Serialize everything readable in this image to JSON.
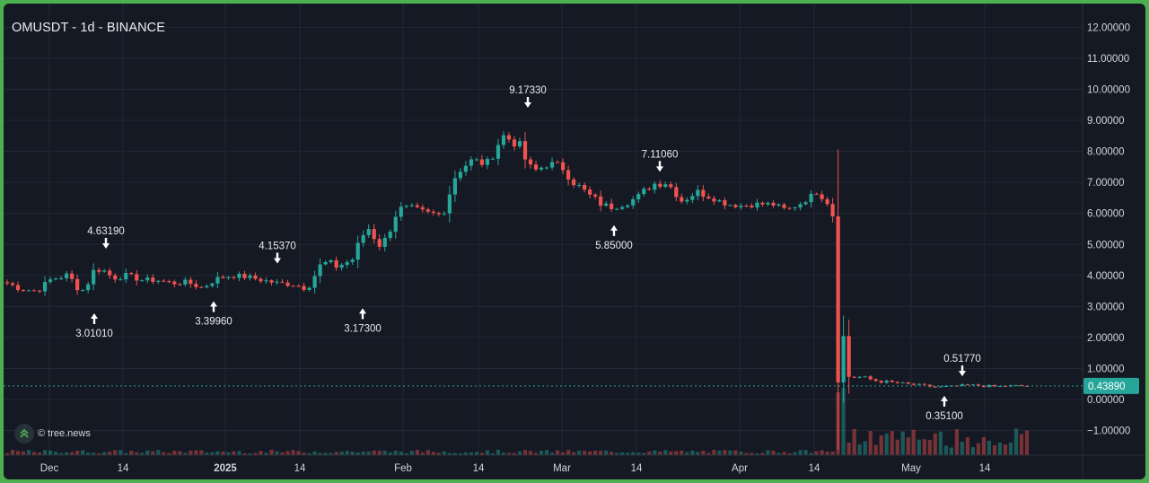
{
  "header": {
    "title": "OMUSDT - 1d - BINANCE"
  },
  "watermark": {
    "text": "© tree.news",
    "icon": "tree-news-logo-icon"
  },
  "colors": {
    "background": "#151923",
    "grid": "#232834",
    "up": "#26a69a",
    "down": "#ef5350",
    "text": "#d1d4dc",
    "price_line": "#26a69a"
  },
  "chart_data": {
    "type": "candlestick",
    "symbol": "OMUSDT",
    "interval": "1d",
    "exchange": "BINANCE",
    "y_axis": {
      "ylim": [
        -1.6,
        12.4
      ],
      "ticks": [
        "12.00000",
        "11.00000",
        "10.00000",
        "9.00000",
        "8.00000",
        "7.00000",
        "6.00000",
        "5.00000",
        "4.00000",
        "3.00000",
        "2.00000",
        "1.00000",
        "0.00000",
        "−1.00000"
      ]
    },
    "x_axis": {
      "ticks": [
        "Dec",
        "14",
        "2025",
        "14",
        "Feb",
        "14",
        "Mar",
        "14",
        "Apr",
        "14",
        "May",
        "14"
      ]
    },
    "last_price": {
      "value": 0.4389,
      "label": "0.43890"
    },
    "annotations": [
      {
        "label": "4.63190",
        "value": 4.6319,
        "type": "high"
      },
      {
        "label": "3.01010",
        "value": 3.0101,
        "type": "low"
      },
      {
        "label": "3.39960",
        "value": 3.3996,
        "type": "low"
      },
      {
        "label": "4.15370",
        "value": 4.1537,
        "type": "high"
      },
      {
        "label": "3.17300",
        "value": 3.173,
        "type": "low"
      },
      {
        "label": "9.17330",
        "value": 9.1733,
        "type": "high"
      },
      {
        "label": "5.85000",
        "value": 5.85,
        "type": "low"
      },
      {
        "label": "7.11060",
        "value": 7.1106,
        "type": "high"
      },
      {
        "label": "0.51770",
        "value": 0.5177,
        "type": "high"
      },
      {
        "label": "0.35100",
        "value": 0.351,
        "type": "low"
      }
    ],
    "keypoints": [
      [
        3.75,
        0.4
      ],
      [
        3.55,
        0.3
      ],
      [
        3.5,
        0.3
      ],
      [
        3.9,
        0.4
      ],
      [
        4.0,
        0.4
      ],
      [
        3.5,
        0.6
      ],
      [
        4.3,
        0.7
      ],
      [
        3.95,
        0.5
      ],
      [
        4.0,
        0.3
      ],
      [
        3.85,
        0.3
      ],
      [
        3.85,
        0.3
      ],
      [
        3.75,
        0.3
      ],
      [
        3.78,
        0.3
      ],
      [
        3.6,
        0.3
      ],
      [
        3.9,
        0.3
      ],
      [
        4.0,
        0.3
      ],
      [
        3.95,
        0.3
      ],
      [
        3.85,
        0.3
      ],
      [
        3.75,
        0.3
      ],
      [
        3.72,
        0.3
      ],
      [
        3.6,
        0.4
      ],
      [
        4.4,
        0.6
      ],
      [
        4.3,
        0.5
      ],
      [
        4.5,
        0.5
      ],
      [
        5.6,
        0.8
      ],
      [
        4.9,
        0.6
      ],
      [
        6.1,
        0.7
      ],
      [
        6.15,
        0.4
      ],
      [
        6.0,
        0.4
      ],
      [
        5.95,
        0.5
      ],
      [
        7.4,
        0.8
      ],
      [
        7.7,
        0.5
      ],
      [
        7.6,
        0.5
      ],
      [
        8.5,
        0.8
      ],
      [
        8.3,
        0.7
      ],
      [
        7.3,
        0.8
      ],
      [
        7.6,
        0.5
      ],
      [
        7.5,
        0.5
      ],
      [
        6.9,
        0.6
      ],
      [
        6.5,
        0.5
      ],
      [
        6.2,
        0.5
      ],
      [
        6.3,
        0.4
      ],
      [
        6.5,
        0.4
      ],
      [
        6.95,
        0.5
      ],
      [
        7.0,
        0.4
      ],
      [
        6.4,
        0.4
      ],
      [
        6.7,
        0.4
      ],
      [
        6.5,
        0.3
      ],
      [
        6.3,
        0.3
      ],
      [
        6.25,
        0.3
      ],
      [
        6.3,
        0.3
      ],
      [
        6.3,
        0.3
      ],
      [
        6.1,
        0.3
      ],
      [
        6.35,
        0.3
      ],
      [
        6.7,
        0.3
      ],
      [
        6.2,
        0.3
      ],
      [
        0.75,
        0.5
      ],
      [
        0.72,
        0.2
      ],
      [
        0.6,
        0.2
      ],
      [
        0.55,
        0.15
      ],
      [
        0.5,
        0.15
      ],
      [
        0.45,
        0.15
      ],
      [
        0.4,
        0.12
      ],
      [
        0.42,
        0.12
      ],
      [
        0.47,
        0.12
      ],
      [
        0.44,
        0.12
      ],
      [
        0.42,
        0.12
      ],
      [
        0.44,
        0.12
      ],
      [
        0.4389,
        0.1
      ]
    ],
    "volume": {
      "baseline": 0.0,
      "notes": "volume bars rise sharply on the crash date in mid-April"
    },
    "grid": true
  }
}
